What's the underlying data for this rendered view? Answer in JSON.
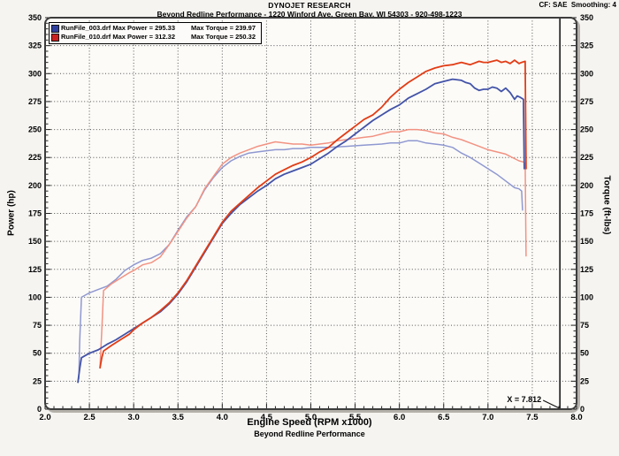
{
  "header": {
    "title": "DYNOJET RESEARCH",
    "subtitle": "Beyond Redline Performance - 1220 Winford Ave. Green Bay, WI 54303 - 920-498-1223",
    "correction": "CF: SAE  Smoothing: 4"
  },
  "legend": {
    "rows": [
      {
        "file": "RunFile_003.drf",
        "left_text": "RunFile_003.drf Max Power = 295.33",
        "right_text": "Max Torque = 239.97",
        "color": "#2f3f9f",
        "max_power": 295.33,
        "max_torque": 239.97
      },
      {
        "file": "RunFile_010.drf",
        "left_text": "RunFile_010.drf Max Power = 312.32",
        "right_text": "Max Torque = 250.32",
        "color": "#cc2020",
        "max_power": 312.32,
        "max_torque": 250.32
      }
    ]
  },
  "footer": {
    "text": "Beyond Redline Performance"
  },
  "chart_data": {
    "type": "line",
    "xlabel": "Engine Speed (RPM x1000)",
    "ylabel_left": "Power (hp)",
    "ylabel_right": "Torque (ft-lbs)",
    "xlim": [
      2.0,
      8.0
    ],
    "ylim": [
      0,
      350
    ],
    "x_major_step": 0.5,
    "x_minor_step": 0.1,
    "y_major_step": 25,
    "y_minor_step": 5,
    "grid": "dotted-major",
    "legend_position": "top-left",
    "cursor_x": 7.812,
    "cursor_label": "X = 7.812",
    "colors": {
      "blue_power": "#4353a8",
      "blue_torque": "#8f98d0",
      "red_power": "#e23c15",
      "red_torque": "#f29282",
      "grid": "#555555",
      "frame": "#3c3c3c",
      "cursor": "#1a1a1a"
    },
    "series": [
      {
        "name": "RunFile_003.drf Torque",
        "unit": "ft-lbs",
        "color": "#8f98d0",
        "width": 1.5,
        "points": [
          [
            2.38,
            27
          ],
          [
            2.39,
            60
          ],
          [
            2.41,
            100
          ],
          [
            2.5,
            104
          ],
          [
            2.6,
            107
          ],
          [
            2.7,
            110
          ],
          [
            2.8,
            116
          ],
          [
            2.9,
            124
          ],
          [
            3.0,
            129
          ],
          [
            3.1,
            133
          ],
          [
            3.2,
            135
          ],
          [
            3.3,
            139
          ],
          [
            3.4,
            147
          ],
          [
            3.5,
            160
          ],
          [
            3.6,
            172
          ],
          [
            3.7,
            181
          ],
          [
            3.8,
            196
          ],
          [
            3.9,
            207
          ],
          [
            4.0,
            216
          ],
          [
            4.1,
            222
          ],
          [
            4.2,
            226
          ],
          [
            4.3,
            229
          ],
          [
            4.4,
            230
          ],
          [
            4.5,
            231
          ],
          [
            4.6,
            232
          ],
          [
            4.7,
            232
          ],
          [
            4.8,
            233
          ],
          [
            4.9,
            233
          ],
          [
            5.0,
            234
          ],
          [
            5.2,
            234
          ],
          [
            5.4,
            235
          ],
          [
            5.6,
            236
          ],
          [
            5.8,
            237
          ],
          [
            5.9,
            238
          ],
          [
            6.0,
            238
          ],
          [
            6.1,
            240
          ],
          [
            6.2,
            240
          ],
          [
            6.3,
            238
          ],
          [
            6.4,
            237
          ],
          [
            6.5,
            236
          ],
          [
            6.6,
            234
          ],
          [
            6.7,
            229
          ],
          [
            6.8,
            225
          ],
          [
            6.9,
            220
          ],
          [
            7.0,
            215
          ],
          [
            7.1,
            210
          ],
          [
            7.2,
            204
          ],
          [
            7.25,
            201
          ],
          [
            7.3,
            198
          ],
          [
            7.35,
            197
          ],
          [
            7.38,
            195
          ],
          [
            7.39,
            178
          ]
        ]
      },
      {
        "name": "RunFile_010.drf Torque",
        "unit": "ft-lbs",
        "color": "#f29282",
        "width": 1.5,
        "points": [
          [
            2.62,
            38
          ],
          [
            2.64,
            70
          ],
          [
            2.66,
            106
          ],
          [
            2.75,
            112
          ],
          [
            2.85,
            117
          ],
          [
            2.95,
            122
          ],
          [
            3.0,
            124
          ],
          [
            3.1,
            129
          ],
          [
            3.2,
            131
          ],
          [
            3.3,
            136
          ],
          [
            3.4,
            147
          ],
          [
            3.5,
            159
          ],
          [
            3.6,
            171
          ],
          [
            3.7,
            181
          ],
          [
            3.8,
            197
          ],
          [
            3.9,
            208
          ],
          [
            4.0,
            219
          ],
          [
            4.1,
            225
          ],
          [
            4.2,
            229
          ],
          [
            4.3,
            232
          ],
          [
            4.4,
            235
          ],
          [
            4.5,
            237
          ],
          [
            4.6,
            239
          ],
          [
            4.7,
            238
          ],
          [
            4.8,
            237
          ],
          [
            4.9,
            237
          ],
          [
            5.0,
            236
          ],
          [
            5.1,
            237
          ],
          [
            5.2,
            238
          ],
          [
            5.3,
            240
          ],
          [
            5.4,
            241
          ],
          [
            5.5,
            242
          ],
          [
            5.6,
            243
          ],
          [
            5.7,
            244
          ],
          [
            5.8,
            246
          ],
          [
            5.9,
            248
          ],
          [
            6.0,
            248
          ],
          [
            6.1,
            250
          ],
          [
            6.2,
            250
          ],
          [
            6.3,
            249
          ],
          [
            6.4,
            247
          ],
          [
            6.5,
            246
          ],
          [
            6.6,
            243
          ],
          [
            6.7,
            241
          ],
          [
            6.8,
            238
          ],
          [
            6.9,
            235
          ],
          [
            7.0,
            232
          ],
          [
            7.1,
            230
          ],
          [
            7.2,
            228
          ],
          [
            7.3,
            224
          ],
          [
            7.35,
            222
          ],
          [
            7.4,
            221
          ],
          [
            7.42,
            220
          ],
          [
            7.43,
            137
          ]
        ]
      },
      {
        "name": "RunFile_003.drf Power",
        "unit": "hp",
        "color": "#4353a8",
        "width": 1.8,
        "points": [
          [
            2.37,
            24
          ],
          [
            2.39,
            36
          ],
          [
            2.41,
            46
          ],
          [
            2.5,
            50
          ],
          [
            2.6,
            53
          ],
          [
            2.7,
            58
          ],
          [
            2.8,
            62
          ],
          [
            2.9,
            67
          ],
          [
            3.0,
            72
          ],
          [
            3.1,
            77
          ],
          [
            3.2,
            82
          ],
          [
            3.3,
            87
          ],
          [
            3.4,
            94
          ],
          [
            3.5,
            103
          ],
          [
            3.6,
            114
          ],
          [
            3.7,
            127
          ],
          [
            3.8,
            140
          ],
          [
            3.9,
            153
          ],
          [
            4.0,
            166
          ],
          [
            4.1,
            175
          ],
          [
            4.2,
            183
          ],
          [
            4.3,
            189
          ],
          [
            4.4,
            195
          ],
          [
            4.5,
            200
          ],
          [
            4.6,
            206
          ],
          [
            4.7,
            210
          ],
          [
            4.8,
            213
          ],
          [
            4.9,
            216
          ],
          [
            5.0,
            219
          ],
          [
            5.1,
            224
          ],
          [
            5.2,
            229
          ],
          [
            5.3,
            235
          ],
          [
            5.4,
            240
          ],
          [
            5.5,
            246
          ],
          [
            5.6,
            252
          ],
          [
            5.7,
            258
          ],
          [
            5.8,
            263
          ],
          [
            5.9,
            268
          ],
          [
            6.0,
            272
          ],
          [
            6.1,
            278
          ],
          [
            6.2,
            282
          ],
          [
            6.3,
            286
          ],
          [
            6.4,
            291
          ],
          [
            6.5,
            293
          ],
          [
            6.55,
            294
          ],
          [
            6.6,
            295
          ],
          [
            6.7,
            294
          ],
          [
            6.75,
            292
          ],
          [
            6.8,
            291
          ],
          [
            6.85,
            287
          ],
          [
            6.9,
            285
          ],
          [
            6.95,
            286
          ],
          [
            7.0,
            286
          ],
          [
            7.05,
            288
          ],
          [
            7.1,
            287
          ],
          [
            7.15,
            284
          ],
          [
            7.2,
            287
          ],
          [
            7.25,
            283
          ],
          [
            7.3,
            277
          ],
          [
            7.33,
            280
          ],
          [
            7.36,
            279
          ],
          [
            7.4,
            277
          ],
          [
            7.41,
            215
          ]
        ]
      },
      {
        "name": "RunFile_010.drf Power",
        "unit": "hp",
        "color": "#e23c15",
        "width": 1.8,
        "points": [
          [
            2.62,
            37
          ],
          [
            2.64,
            46
          ],
          [
            2.66,
            52
          ],
          [
            2.75,
            57
          ],
          [
            2.85,
            62
          ],
          [
            2.95,
            67
          ],
          [
            3.0,
            71
          ],
          [
            3.1,
            77
          ],
          [
            3.2,
            82
          ],
          [
            3.3,
            88
          ],
          [
            3.4,
            95
          ],
          [
            3.5,
            104
          ],
          [
            3.6,
            115
          ],
          [
            3.7,
            128
          ],
          [
            3.8,
            141
          ],
          [
            3.9,
            154
          ],
          [
            4.0,
            167
          ],
          [
            4.1,
            177
          ],
          [
            4.2,
            184
          ],
          [
            4.3,
            191
          ],
          [
            4.4,
            198
          ],
          [
            4.5,
            204
          ],
          [
            4.6,
            210
          ],
          [
            4.7,
            214
          ],
          [
            4.8,
            218
          ],
          [
            4.9,
            221
          ],
          [
            5.0,
            225
          ],
          [
            5.1,
            230
          ],
          [
            5.2,
            234
          ],
          [
            5.3,
            241
          ],
          [
            5.4,
            247
          ],
          [
            5.5,
            253
          ],
          [
            5.6,
            259
          ],
          [
            5.7,
            263
          ],
          [
            5.8,
            270
          ],
          [
            5.9,
            279
          ],
          [
            6.0,
            286
          ],
          [
            6.1,
            292
          ],
          [
            6.2,
            297
          ],
          [
            6.3,
            302
          ],
          [
            6.4,
            305
          ],
          [
            6.5,
            307
          ],
          [
            6.6,
            308
          ],
          [
            6.65,
            309
          ],
          [
            6.7,
            310
          ],
          [
            6.8,
            308
          ],
          [
            6.9,
            311
          ],
          [
            6.95,
            310
          ],
          [
            7.0,
            310
          ],
          [
            7.05,
            311
          ],
          [
            7.1,
            312
          ],
          [
            7.15,
            310
          ],
          [
            7.2,
            311
          ],
          [
            7.25,
            309
          ],
          [
            7.3,
            312
          ],
          [
            7.35,
            309
          ],
          [
            7.38,
            310
          ],
          [
            7.42,
            311
          ],
          [
            7.43,
            215
          ]
        ]
      }
    ]
  }
}
